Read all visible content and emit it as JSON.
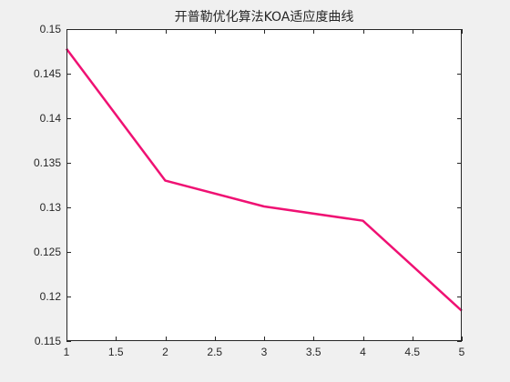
{
  "chart_data": {
    "type": "line",
    "title": "开普勒优化算法KOA适应度曲线",
    "xlabel": "",
    "ylabel": "",
    "x": [
      1,
      2,
      3,
      4,
      5
    ],
    "series": [
      {
        "values": [
          0.1478,
          0.133,
          0.1301,
          0.1285,
          0.1184
        ],
        "color": "#ef1173"
      }
    ],
    "xlim": [
      1,
      5
    ],
    "ylim": [
      0.115,
      0.15
    ],
    "xticks": [
      1,
      1.5,
      2,
      2.5,
      3,
      3.5,
      4,
      4.5,
      5
    ],
    "xtick_labels": [
      "1",
      "1.5",
      "2",
      "2.5",
      "3",
      "3.5",
      "4",
      "4.5",
      "5"
    ],
    "yticks": [
      0.115,
      0.12,
      0.125,
      0.13,
      0.135,
      0.14,
      0.145,
      0.15
    ],
    "ytick_labels": [
      "0.115",
      "0.12",
      "0.125",
      "0.13",
      "0.135",
      "0.14",
      "0.145",
      "0.15"
    ],
    "grid": false,
    "legend": "none",
    "colors": {
      "background": "#ffffff",
      "axes": "#262626",
      "line": "#ef1173"
    }
  }
}
